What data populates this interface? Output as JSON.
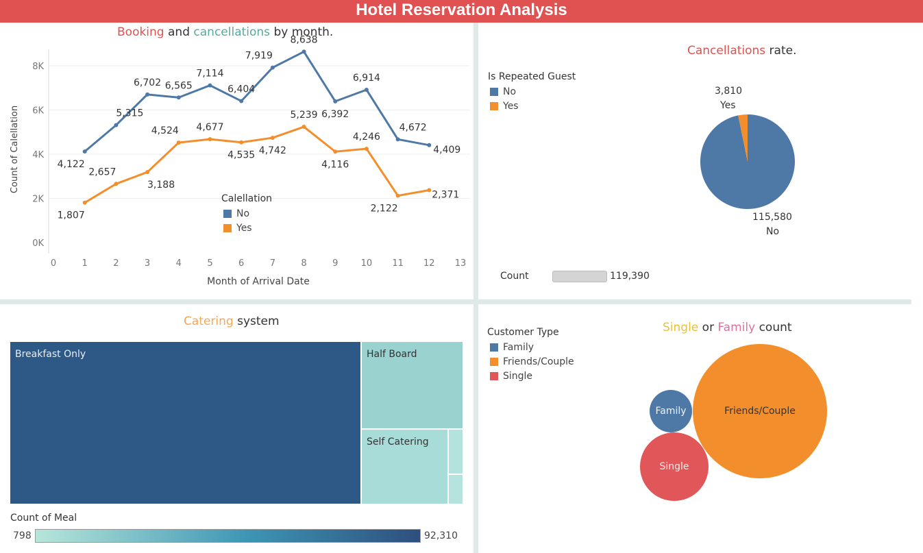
{
  "dashboard": {
    "title": "Hotel Reservation Analysis"
  },
  "line_panel": {
    "title": {
      "part1": "Booking",
      "part2": " and ",
      "part3": "cancellations",
      "part4": " by month."
    },
    "legend_title": "Calellation",
    "legend": [
      {
        "label": "No",
        "color": "#4e79a7"
      },
      {
        "label": "Yes",
        "color": "#f28e2b"
      }
    ]
  },
  "pie_panel": {
    "title": {
      "part1": "Cancellations",
      "part2": " rate."
    },
    "legend_title": "Is Repeated Guest",
    "legend": [
      {
        "label": "No",
        "color": "#4e79a7"
      },
      {
        "label": "Yes",
        "color": "#f28e2b"
      }
    ],
    "slice_labels": {
      "yes_value": "3,810",
      "yes_name": "Yes",
      "no_value": "115,580",
      "no_name": "No"
    },
    "count_label": "Count",
    "count_value": "119,390"
  },
  "treemap_panel": {
    "title": {
      "part1": "Catering",
      "part2": " system"
    },
    "labels": {
      "bb": "Breakfast Only",
      "hb": "Half Board",
      "sc": "Self Catering"
    },
    "color_legend_title": "Count of Meal",
    "color_min": "798",
    "color_max": "92,310"
  },
  "bubble_panel": {
    "title": {
      "part1": "Single",
      "part2": " or ",
      "part3": "Family",
      "part4": " count"
    },
    "legend_title": "Customer Type",
    "legend": [
      {
        "label": "Family",
        "color": "#4e79a7"
      },
      {
        "label": "Friends/Couple",
        "color": "#f28e2b"
      },
      {
        "label": "Single",
        "color": "#e15759"
      }
    ],
    "bubble_labels": {
      "family": "Family",
      "friends": "Friends/Couple",
      "single": "Single"
    }
  },
  "chart_data": [
    {
      "type": "line",
      "title": "Booking and cancellations by month.",
      "xlabel": "Month of Arrival Date",
      "ylabel": "Count of Calellation",
      "xlim": [
        0,
        13
      ],
      "ylim": [
        0,
        8600
      ],
      "x_ticks": [
        "0",
        "1",
        "2",
        "3",
        "4",
        "5",
        "6",
        "7",
        "8",
        "9",
        "10",
        "11",
        "12",
        "13"
      ],
      "y_ticks": [
        {
          "value": 0,
          "label": "0K"
        },
        {
          "value": 2000,
          "label": "2K"
        },
        {
          "value": 4000,
          "label": "4K"
        },
        {
          "value": 6000,
          "label": "6K"
        },
        {
          "value": 8000,
          "label": "8K"
        }
      ],
      "x": [
        1,
        2,
        3,
        4,
        5,
        6,
        7,
        8,
        9,
        10,
        11,
        12
      ],
      "series": [
        {
          "name": "No",
          "color": "#4e79a7",
          "values": [
            4122,
            5315,
            6702,
            6565,
            7114,
            6404,
            7919,
            8638,
            6392,
            6914,
            4672,
            4409
          ],
          "labels": [
            "4,122",
            "5,315",
            "6,702",
            "6,565",
            "7,114",
            "6,404",
            "7,919",
            "8,638",
            "6,392",
            "6,914",
            "4,672",
            "4,409"
          ]
        },
        {
          "name": "Yes",
          "color": "#f28e2b",
          "values": [
            1807,
            2657,
            3188,
            4524,
            4677,
            4535,
            4742,
            5239,
            4116,
            4246,
            2122,
            2371
          ],
          "labels": [
            "1,807",
            "2,657",
            "3,188",
            "4,524",
            "4,677",
            "4,535",
            "4,742",
            "5,239",
            "4,116",
            "4,246",
            "2,122",
            "2,371"
          ]
        }
      ],
      "grid": true,
      "legend_position": "bottom-center"
    },
    {
      "type": "pie",
      "title": "Cancellations rate.",
      "slices": [
        {
          "name": "No",
          "value": 115580,
          "color": "#4e79a7"
        },
        {
          "name": "Yes",
          "value": 3810,
          "color": "#f28e2b"
        }
      ],
      "legend_position": "top-left"
    },
    {
      "type": "treemap",
      "title": "Catering system",
      "items": [
        {
          "name": "Breakfast Only",
          "value": 92310
        },
        {
          "name": "Half Board",
          "value": 14463
        },
        {
          "name": "Self Catering",
          "value": 10650
        },
        {
          "name": "",
          "value": 1169
        },
        {
          "name": "",
          "value": 798
        }
      ]
    },
    {
      "type": "bubble",
      "title": "Single or Family count",
      "items": [
        {
          "name": "Friends/Couple",
          "value": 89900,
          "color": "#f28e2b"
        },
        {
          "name": "Single",
          "value": 22500,
          "color": "#e15759"
        },
        {
          "name": "Family",
          "value": 7000,
          "color": "#4e79a7"
        }
      ]
    }
  ]
}
